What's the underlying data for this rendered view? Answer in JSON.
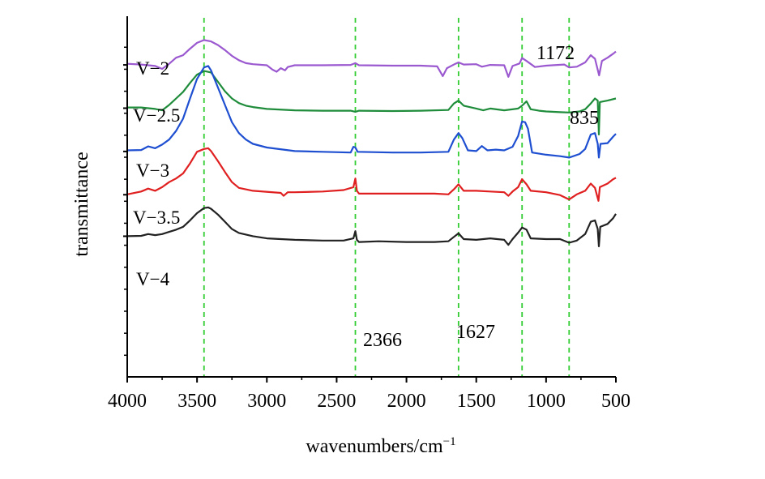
{
  "chart_data": {
    "type": "line",
    "xlabel": "wavenumbers/cm",
    "xlabel_superscript": "−1",
    "ylabel": "transmittance",
    "xlim": [
      4000,
      500
    ],
    "x_reversed": true,
    "ylim": [
      0,
      100
    ],
    "x_ticks": [
      4000,
      3500,
      3000,
      2500,
      2000,
      1500,
      1000,
      500
    ],
    "x_tick_labels": [
      "4000",
      "3500",
      "3000",
      "2500",
      "2000",
      "1500",
      "1000",
      "500"
    ],
    "y_tick_labels_shown": false,
    "grid": false,
    "legend": "labels placed on the left, above each curve",
    "colors": {
      "V-2": "#9b59d0",
      "V-2.5": "#1e8c3a",
      "V-3": "#1f4fd1",
      "V-3.5": "#e02020",
      "V-4": "#222222",
      "reference_lines": "#33cc33"
    },
    "reference_lines": [
      {
        "x": 3450,
        "label": ""
      },
      {
        "x": 2366,
        "label": "2366"
      },
      {
        "x": 1627,
        "label": "1627"
      },
      {
        "x": 1172,
        "label": "1172"
      },
      {
        "x": 835,
        "label": "835"
      }
    ],
    "series": [
      {
        "name": "V−2",
        "label": "V−2",
        "baseline": 86.5,
        "points": [
          [
            4000,
            86.8
          ],
          [
            3900,
            86.6
          ],
          [
            3800,
            86.2
          ],
          [
            3750,
            85.4
          ],
          [
            3700,
            86.8
          ],
          [
            3650,
            88.5
          ],
          [
            3600,
            89.2
          ],
          [
            3550,
            91.0
          ],
          [
            3500,
            92.6
          ],
          [
            3450,
            93.4
          ],
          [
            3400,
            93.0
          ],
          [
            3350,
            92.0
          ],
          [
            3300,
            90.6
          ],
          [
            3250,
            89.0
          ],
          [
            3200,
            87.8
          ],
          [
            3150,
            87.0
          ],
          [
            3100,
            86.7
          ],
          [
            3000,
            86.4
          ],
          [
            2960,
            85.2
          ],
          [
            2930,
            84.6
          ],
          [
            2900,
            85.6
          ],
          [
            2870,
            85.0
          ],
          [
            2850,
            85.9
          ],
          [
            2800,
            86.4
          ],
          [
            2600,
            86.4
          ],
          [
            2400,
            86.5
          ],
          [
            2366,
            87.0
          ],
          [
            2340,
            86.4
          ],
          [
            2100,
            86.3
          ],
          [
            1900,
            86.3
          ],
          [
            1780,
            86.1
          ],
          [
            1740,
            83.4
          ],
          [
            1710,
            85.6
          ],
          [
            1650,
            86.8
          ],
          [
            1627,
            87.2
          ],
          [
            1590,
            86.6
          ],
          [
            1500,
            86.7
          ],
          [
            1460,
            86.0
          ],
          [
            1400,
            86.5
          ],
          [
            1300,
            86.4
          ],
          [
            1270,
            83.2
          ],
          [
            1240,
            86.2
          ],
          [
            1190,
            86.9
          ],
          [
            1172,
            88.4
          ],
          [
            1140,
            87.6
          ],
          [
            1080,
            85.9
          ],
          [
            1000,
            86.3
          ],
          [
            920,
            86.5
          ],
          [
            870,
            86.6
          ],
          [
            835,
            85.8
          ],
          [
            780,
            86.0
          ],
          [
            720,
            87.2
          ],
          [
            680,
            89.2
          ],
          [
            650,
            88.2
          ],
          [
            620,
            83.6
          ],
          [
            600,
            87.6
          ],
          [
            560,
            88.5
          ],
          [
            520,
            89.6
          ],
          [
            500,
            90.2
          ]
        ]
      },
      {
        "name": "V−2.5",
        "label": "V−2.5",
        "baseline": 74.5,
        "points": [
          [
            4000,
            74.7
          ],
          [
            3900,
            74.7
          ],
          [
            3800,
            74.3
          ],
          [
            3750,
            73.9
          ],
          [
            3700,
            75.4
          ],
          [
            3650,
            77.2
          ],
          [
            3600,
            79.0
          ],
          [
            3550,
            81.5
          ],
          [
            3500,
            83.8
          ],
          [
            3450,
            84.8
          ],
          [
            3400,
            84.4
          ],
          [
            3350,
            81.8
          ],
          [
            3300,
            79.2
          ],
          [
            3250,
            77.2
          ],
          [
            3200,
            75.9
          ],
          [
            3150,
            75.2
          ],
          [
            3100,
            74.8
          ],
          [
            3000,
            74.3
          ],
          [
            2800,
            73.9
          ],
          [
            2600,
            73.8
          ],
          [
            2400,
            73.8
          ],
          [
            2366,
            73.5
          ],
          [
            2340,
            73.8
          ],
          [
            2100,
            73.7
          ],
          [
            1900,
            73.8
          ],
          [
            1700,
            74.0
          ],
          [
            1660,
            75.8
          ],
          [
            1627,
            76.6
          ],
          [
            1590,
            75.2
          ],
          [
            1500,
            74.4
          ],
          [
            1450,
            73.9
          ],
          [
            1400,
            74.4
          ],
          [
            1300,
            73.9
          ],
          [
            1200,
            74.4
          ],
          [
            1172,
            75.2
          ],
          [
            1140,
            76.4
          ],
          [
            1110,
            74.2
          ],
          [
            1050,
            73.8
          ],
          [
            1000,
            73.6
          ],
          [
            900,
            73.4
          ],
          [
            835,
            73.3
          ],
          [
            760,
            73.6
          ],
          [
            720,
            74.2
          ],
          [
            680,
            75.8
          ],
          [
            650,
            77.2
          ],
          [
            630,
            76.6
          ],
          [
            622,
            67.2
          ],
          [
            615,
            76.2
          ],
          [
            560,
            76.6
          ],
          [
            500,
            77.2
          ]
        ]
      },
      {
        "name": "V−3",
        "label": "V−3",
        "baseline": 62.5,
        "points": [
          [
            4000,
            62.8
          ],
          [
            3900,
            62.9
          ],
          [
            3850,
            63.9
          ],
          [
            3800,
            63.4
          ],
          [
            3750,
            64.4
          ],
          [
            3700,
            65.8
          ],
          [
            3650,
            68.2
          ],
          [
            3600,
            71.6
          ],
          [
            3550,
            77.2
          ],
          [
            3500,
            82.6
          ],
          [
            3450,
            85.8
          ],
          [
            3420,
            86.2
          ],
          [
            3400,
            85.0
          ],
          [
            3350,
            80.2
          ],
          [
            3300,
            75.4
          ],
          [
            3250,
            70.6
          ],
          [
            3200,
            67.6
          ],
          [
            3150,
            65.8
          ],
          [
            3100,
            64.6
          ],
          [
            3000,
            63.6
          ],
          [
            2800,
            62.6
          ],
          [
            2600,
            62.4
          ],
          [
            2400,
            62.2
          ],
          [
            2380,
            63.8
          ],
          [
            2366,
            63.6
          ],
          [
            2350,
            62.4
          ],
          [
            2100,
            62.2
          ],
          [
            1900,
            62.2
          ],
          [
            1700,
            62.4
          ],
          [
            1660,
            65.8
          ],
          [
            1627,
            67.6
          ],
          [
            1600,
            66.2
          ],
          [
            1560,
            62.8
          ],
          [
            1500,
            62.6
          ],
          [
            1460,
            64.0
          ],
          [
            1420,
            62.8
          ],
          [
            1360,
            63.0
          ],
          [
            1300,
            62.8
          ],
          [
            1240,
            63.8
          ],
          [
            1200,
            66.8
          ],
          [
            1172,
            70.8
          ],
          [
            1150,
            70.6
          ],
          [
            1130,
            68.8
          ],
          [
            1100,
            62.2
          ],
          [
            1000,
            61.6
          ],
          [
            900,
            61.2
          ],
          [
            835,
            60.8
          ],
          [
            760,
            61.8
          ],
          [
            720,
            63.2
          ],
          [
            680,
            67.2
          ],
          [
            650,
            67.6
          ],
          [
            630,
            64.6
          ],
          [
            622,
            60.8
          ],
          [
            610,
            64.6
          ],
          [
            560,
            64.8
          ],
          [
            520,
            66.6
          ],
          [
            500,
            67.4
          ]
        ]
      },
      {
        "name": "V−3.5",
        "label": "V−3.5",
        "baseline": 50.5,
        "points": [
          [
            4000,
            50.6
          ],
          [
            3900,
            51.4
          ],
          [
            3850,
            52.2
          ],
          [
            3800,
            51.6
          ],
          [
            3750,
            52.6
          ],
          [
            3700,
            54.0
          ],
          [
            3650,
            55.0
          ],
          [
            3600,
            56.4
          ],
          [
            3550,
            59.2
          ],
          [
            3500,
            62.4
          ],
          [
            3450,
            63.2
          ],
          [
            3420,
            63.4
          ],
          [
            3400,
            62.6
          ],
          [
            3350,
            59.8
          ],
          [
            3300,
            56.8
          ],
          [
            3250,
            54.0
          ],
          [
            3200,
            52.4
          ],
          [
            3100,
            51.6
          ],
          [
            2900,
            51.0
          ],
          [
            2880,
            50.2
          ],
          [
            2850,
            51.2
          ],
          [
            2800,
            51.2
          ],
          [
            2600,
            51.4
          ],
          [
            2450,
            51.8
          ],
          [
            2380,
            52.6
          ],
          [
            2366,
            55.0
          ],
          [
            2355,
            51.6
          ],
          [
            2340,
            50.8
          ],
          [
            2200,
            50.8
          ],
          [
            2000,
            50.8
          ],
          [
            1800,
            50.8
          ],
          [
            1700,
            50.6
          ],
          [
            1660,
            52.0
          ],
          [
            1627,
            53.4
          ],
          [
            1590,
            51.6
          ],
          [
            1500,
            51.6
          ],
          [
            1400,
            51.4
          ],
          [
            1300,
            51.2
          ],
          [
            1270,
            50.2
          ],
          [
            1240,
            51.4
          ],
          [
            1200,
            52.6
          ],
          [
            1172,
            54.8
          ],
          [
            1140,
            53.4
          ],
          [
            1110,
            51.6
          ],
          [
            1000,
            51.2
          ],
          [
            900,
            50.4
          ],
          [
            835,
            49.2
          ],
          [
            780,
            50.6
          ],
          [
            720,
            51.6
          ],
          [
            680,
            53.6
          ],
          [
            650,
            52.4
          ],
          [
            625,
            48.8
          ],
          [
            615,
            52.6
          ],
          [
            560,
            53.6
          ],
          [
            520,
            54.8
          ],
          [
            500,
            55.2
          ]
        ]
      },
      {
        "name": "V−4",
        "label": "V−4",
        "baseline": 39.0,
        "points": [
          [
            4000,
            39.0
          ],
          [
            3900,
            39.1
          ],
          [
            3850,
            39.6
          ],
          [
            3800,
            39.3
          ],
          [
            3750,
            39.6
          ],
          [
            3700,
            40.2
          ],
          [
            3650,
            40.8
          ],
          [
            3600,
            41.6
          ],
          [
            3550,
            43.4
          ],
          [
            3500,
            45.4
          ],
          [
            3450,
            46.8
          ],
          [
            3420,
            47.0
          ],
          [
            3400,
            46.6
          ],
          [
            3350,
            45.0
          ],
          [
            3300,
            43.0
          ],
          [
            3250,
            41.0
          ],
          [
            3200,
            39.9
          ],
          [
            3100,
            39.0
          ],
          [
            3000,
            38.4
          ],
          [
            2800,
            38.0
          ],
          [
            2600,
            37.8
          ],
          [
            2450,
            37.8
          ],
          [
            2380,
            38.4
          ],
          [
            2366,
            40.4
          ],
          [
            2355,
            38.0
          ],
          [
            2340,
            37.4
          ],
          [
            2200,
            37.6
          ],
          [
            2000,
            37.4
          ],
          [
            1800,
            37.4
          ],
          [
            1700,
            37.6
          ],
          [
            1660,
            38.8
          ],
          [
            1627,
            39.8
          ],
          [
            1590,
            38.2
          ],
          [
            1500,
            38.0
          ],
          [
            1400,
            38.4
          ],
          [
            1300,
            38.0
          ],
          [
            1270,
            36.6
          ],
          [
            1240,
            38.2
          ],
          [
            1200,
            40.0
          ],
          [
            1172,
            41.4
          ],
          [
            1140,
            40.8
          ],
          [
            1110,
            38.4
          ],
          [
            1000,
            38.2
          ],
          [
            900,
            38.2
          ],
          [
            835,
            37.2
          ],
          [
            780,
            37.8
          ],
          [
            720,
            39.6
          ],
          [
            680,
            43.0
          ],
          [
            650,
            43.4
          ],
          [
            630,
            41.0
          ],
          [
            622,
            36.2
          ],
          [
            612,
            41.6
          ],
          [
            560,
            42.4
          ],
          [
            520,
            44.0
          ],
          [
            500,
            45.2
          ]
        ]
      }
    ],
    "peak_labels": [
      {
        "text": "2366",
        "x": 2366,
        "y": 28
      },
      {
        "text": "1627",
        "x": 1627,
        "y": 31
      },
      {
        "text": "1172",
        "x": 1172,
        "y": 99
      },
      {
        "text": "835",
        "x": 835,
        "y": 82
      }
    ]
  }
}
